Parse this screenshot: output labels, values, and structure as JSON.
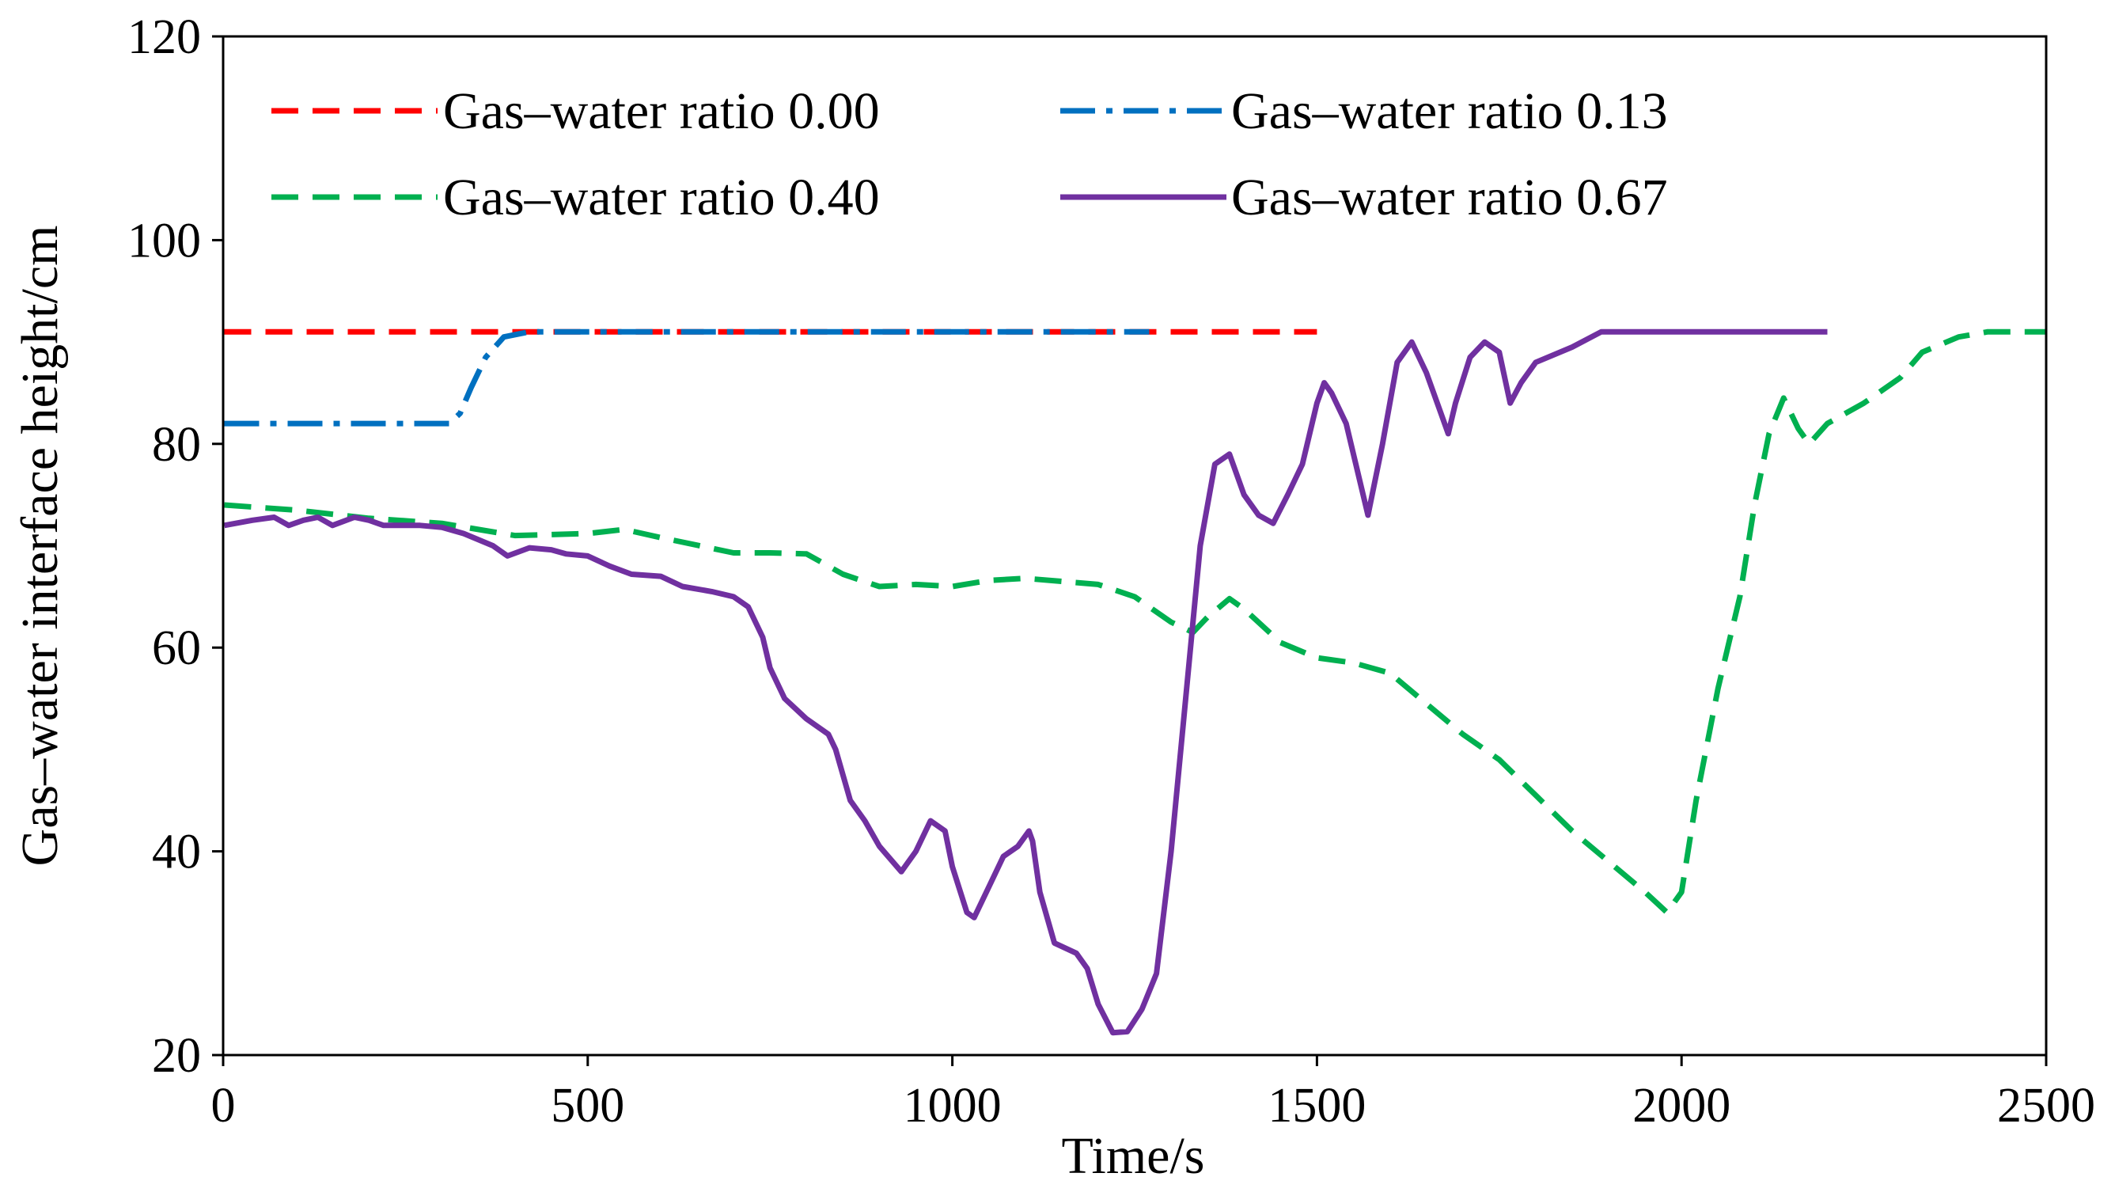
{
  "chart_data": {
    "type": "line",
    "title": "",
    "xlabel": "Time/s",
    "ylabel": "Gas–water interface height/cm",
    "xlim": [
      0,
      2500
    ],
    "ylim": [
      20,
      120
    ],
    "xticks": [
      0,
      500,
      1000,
      1500,
      2000,
      2500
    ],
    "yticks": [
      20,
      40,
      60,
      80,
      100,
      120
    ],
    "grid": false,
    "legend_position": "top",
    "series": [
      {
        "name": "Gas–water ratio 0.00",
        "color": "#ff0000",
        "style": "dashed",
        "points": [
          [
            0,
            91
          ],
          [
            1500,
            91
          ]
        ]
      },
      {
        "name": "Gas–water ratio 0.13",
        "color": "#0070c0",
        "style": "dashdot",
        "points": [
          [
            0,
            82
          ],
          [
            310,
            82
          ],
          [
            325,
            83
          ],
          [
            340,
            85.5
          ],
          [
            360,
            88.5
          ],
          [
            385,
            90.5
          ],
          [
            420,
            91
          ],
          [
            1270,
            91
          ]
        ]
      },
      {
        "name": "Gas–water ratio 0.40",
        "color": "#00b050",
        "style": "dashed",
        "points": [
          [
            0,
            74
          ],
          [
            100,
            73.5
          ],
          [
            200,
            72.7
          ],
          [
            300,
            72.2
          ],
          [
            400,
            71
          ],
          [
            500,
            71.2
          ],
          [
            550,
            71.6
          ],
          [
            600,
            70.8
          ],
          [
            700,
            69.3
          ],
          [
            750,
            69.3
          ],
          [
            800,
            69.2
          ],
          [
            850,
            67.2
          ],
          [
            900,
            66
          ],
          [
            950,
            66.2
          ],
          [
            1000,
            66
          ],
          [
            1050,
            66.6
          ],
          [
            1100,
            66.8
          ],
          [
            1200,
            66.2
          ],
          [
            1250,
            65
          ],
          [
            1300,
            62.5
          ],
          [
            1330,
            61.5
          ],
          [
            1350,
            63
          ],
          [
            1380,
            64.8
          ],
          [
            1400,
            63.8
          ],
          [
            1450,
            60.5
          ],
          [
            1500,
            59
          ],
          [
            1550,
            58.5
          ],
          [
            1600,
            57.5
          ],
          [
            1650,
            54.5
          ],
          [
            1700,
            51.5
          ],
          [
            1750,
            49
          ],
          [
            1800,
            45.5
          ],
          [
            1850,
            42
          ],
          [
            1900,
            39
          ],
          [
            1950,
            36
          ],
          [
            1980,
            34
          ],
          [
            2000,
            36
          ],
          [
            2020,
            45
          ],
          [
            2050,
            56
          ],
          [
            2080,
            65
          ],
          [
            2100,
            74
          ],
          [
            2120,
            81
          ],
          [
            2140,
            84.5
          ],
          [
            2160,
            81.5
          ],
          [
            2175,
            80
          ],
          [
            2200,
            82
          ],
          [
            2250,
            84
          ],
          [
            2300,
            86.5
          ],
          [
            2330,
            89
          ],
          [
            2380,
            90.5
          ],
          [
            2420,
            91
          ],
          [
            2500,
            91
          ]
        ]
      },
      {
        "name": "Gas–water ratio 0.67",
        "color": "#7030a0",
        "style": "solid",
        "points": [
          [
            0,
            72
          ],
          [
            40,
            72.5
          ],
          [
            70,
            72.8
          ],
          [
            90,
            72
          ],
          [
            110,
            72.5
          ],
          [
            130,
            72.8
          ],
          [
            150,
            72
          ],
          [
            180,
            72.8
          ],
          [
            200,
            72.5
          ],
          [
            220,
            72
          ],
          [
            270,
            72
          ],
          [
            300,
            71.8
          ],
          [
            330,
            71.2
          ],
          [
            370,
            70
          ],
          [
            390,
            69
          ],
          [
            420,
            69.8
          ],
          [
            450,
            69.6
          ],
          [
            470,
            69.2
          ],
          [
            500,
            69
          ],
          [
            530,
            68
          ],
          [
            560,
            67.2
          ],
          [
            600,
            67
          ],
          [
            630,
            66
          ],
          [
            670,
            65.5
          ],
          [
            700,
            65
          ],
          [
            720,
            64
          ],
          [
            740,
            61
          ],
          [
            750,
            58
          ],
          [
            770,
            55
          ],
          [
            800,
            53
          ],
          [
            830,
            51.5
          ],
          [
            840,
            50
          ],
          [
            860,
            45
          ],
          [
            880,
            43
          ],
          [
            900,
            40.5
          ],
          [
            930,
            38
          ],
          [
            950,
            40
          ],
          [
            970,
            43
          ],
          [
            990,
            42
          ],
          [
            1000,
            38.5
          ],
          [
            1020,
            34
          ],
          [
            1030,
            33.5
          ],
          [
            1050,
            36.5
          ],
          [
            1070,
            39.5
          ],
          [
            1090,
            40.5
          ],
          [
            1105,
            42
          ],
          [
            1110,
            41
          ],
          [
            1120,
            36
          ],
          [
            1140,
            31
          ],
          [
            1170,
            30
          ],
          [
            1185,
            28.5
          ],
          [
            1200,
            25
          ],
          [
            1220,
            22.2
          ],
          [
            1240,
            22.3
          ],
          [
            1260,
            24.5
          ],
          [
            1280,
            28
          ],
          [
            1300,
            40
          ],
          [
            1320,
            55
          ],
          [
            1340,
            70
          ],
          [
            1360,
            78
          ],
          [
            1380,
            79
          ],
          [
            1400,
            75
          ],
          [
            1420,
            73
          ],
          [
            1440,
            72.2
          ],
          [
            1460,
            75
          ],
          [
            1480,
            78
          ],
          [
            1500,
            84
          ],
          [
            1510,
            86
          ],
          [
            1520,
            85
          ],
          [
            1540,
            82
          ],
          [
            1560,
            76
          ],
          [
            1570,
            73
          ],
          [
            1590,
            80
          ],
          [
            1610,
            88
          ],
          [
            1630,
            90
          ],
          [
            1650,
            87
          ],
          [
            1670,
            83
          ],
          [
            1680,
            81
          ],
          [
            1690,
            84
          ],
          [
            1710,
            88.5
          ],
          [
            1730,
            90
          ],
          [
            1750,
            89
          ],
          [
            1765,
            84
          ],
          [
            1780,
            86
          ],
          [
            1800,
            88
          ],
          [
            1850,
            89.5
          ],
          [
            1890,
            91
          ],
          [
            1950,
            91
          ],
          [
            2200,
            91
          ]
        ]
      }
    ]
  }
}
